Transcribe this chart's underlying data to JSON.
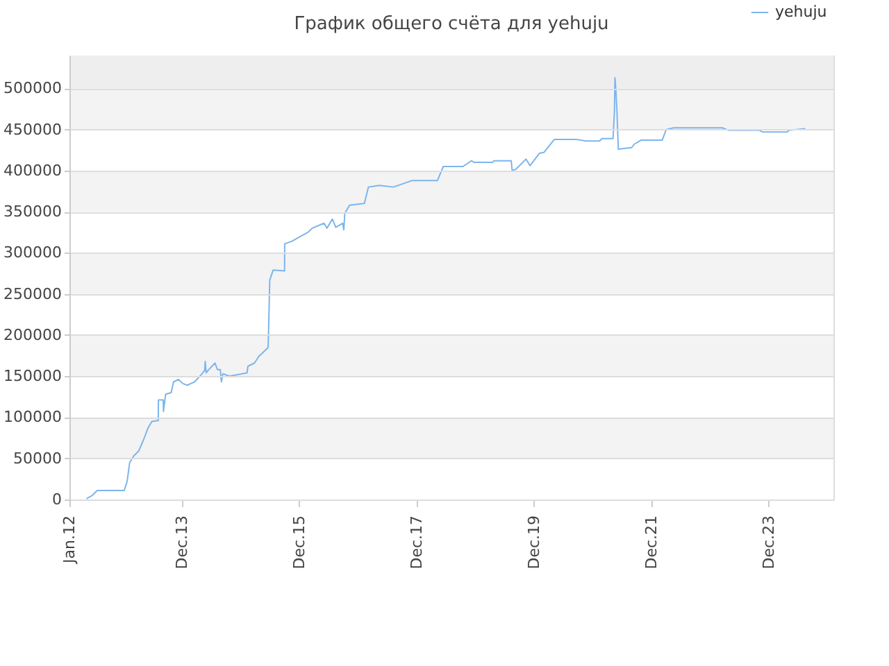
{
  "chart_data": {
    "type": "line",
    "title": "График общего счёта для yehuju",
    "x": [
      "2012-04-16",
      "2012-05-22",
      "2012-06-22",
      "2012-12-07",
      "2012-12-25",
      "2013-01-10",
      "2013-02-04",
      "2013-03-07",
      "2013-04-07",
      "2013-05-04",
      "2013-05-28",
      "2013-07-07",
      "2013-07-08",
      "2013-08-07",
      "2013-08-08",
      "2013-08-22",
      "2013-09-25",
      "2013-10-10",
      "2013-11-10",
      "2013-12-07",
      "2014-01-04",
      "2014-01-25",
      "2014-02-18",
      "2014-04-01",
      "2014-04-22",
      "2014-04-25",
      "2014-05-01",
      "2014-05-13",
      "2014-06-25",
      "2014-07-10",
      "2014-07-28",
      "2014-08-04",
      "2014-08-13",
      "2014-09-22",
      "2014-11-19",
      "2015-01-10",
      "2015-01-16",
      "2015-02-26",
      "2015-03-25",
      "2015-05-07",
      "2015-05-22",
      "2015-06-01",
      "2015-06-22",
      "2015-09-01",
      "2015-09-02",
      "2015-10-16",
      "2015-12-10",
      "2016-01-25",
      "2016-02-21",
      "2016-05-04",
      "2016-05-22",
      "2016-06-25",
      "2016-07-16",
      "2016-08-28",
      "2016-09-04",
      "2016-09-10",
      "2016-10-10",
      "2016-11-22",
      "2017-01-10",
      "2017-02-04",
      "2017-04-13",
      "2017-07-10",
      "2017-11-04",
      "2018-04-10",
      "2018-05-16",
      "2018-09-16",
      "2018-11-07",
      "2018-11-25",
      "2019-03-19",
      "2019-03-28",
      "2019-07-13",
      "2019-07-19",
      "2019-08-13",
      "2019-10-13",
      "2019-11-07",
      "2020-01-04",
      "2020-02-01",
      "2020-04-07",
      "2020-08-22",
      "2020-10-19",
      "2021-01-13",
      "2021-01-28",
      "2021-04-07",
      "2021-04-16",
      "2021-04-19",
      "2021-04-25",
      "2021-05-01",
      "2021-05-10",
      "2021-08-01",
      "2021-08-16",
      "2021-09-28",
      "2022-02-07",
      "2022-03-04",
      "2022-04-19",
      "2023-02-16",
      "2023-03-28",
      "2023-10-04",
      "2023-10-25",
      "2024-03-25",
      "2024-04-07",
      "2024-07-16"
    ],
    "series": [
      {
        "name": "yehuju",
        "color": "#7cb5ec",
        "values": [
          1000,
          5000,
          11000,
          11000,
          22000,
          45000,
          53000,
          59000,
          73000,
          87000,
          95000,
          96000,
          121000,
          121000,
          107000,
          128000,
          130000,
          143000,
          146000,
          141000,
          139000,
          141000,
          143000,
          152000,
          157000,
          168000,
          154000,
          157000,
          166000,
          158000,
          158000,
          143000,
          153000,
          150000,
          152000,
          154000,
          162000,
          166000,
          174000,
          182000,
          185000,
          267000,
          279000,
          278000,
          311000,
          314000,
          320000,
          325000,
          330000,
          336000,
          330000,
          341000,
          331000,
          336000,
          328000,
          348000,
          358000,
          359000,
          360000,
          380000,
          382000,
          380000,
          388000,
          388000,
          405000,
          405000,
          412000,
          410000,
          410000,
          412000,
          412000,
          400000,
          402000,
          414000,
          406000,
          421000,
          422000,
          438000,
          438000,
          436000,
          436000,
          439000,
          439000,
          474000,
          513000,
          497000,
          474000,
          426000,
          428000,
          432000,
          437000,
          437000,
          450000,
          452000,
          452000,
          449000,
          449000,
          447000,
          447000,
          449000,
          451000
        ]
      }
    ],
    "xlim": [
      "2012-01-01",
      "2025-01-08"
    ],
    "xticks": [
      {
        "value": "2012-01-01",
        "label": "Jan.12"
      },
      {
        "value": "2013-12-01",
        "label": "Dec.13"
      },
      {
        "value": "2015-12-01",
        "label": "Dec.15"
      },
      {
        "value": "2017-12-01",
        "label": "Dec.17"
      },
      {
        "value": "2019-12-01",
        "label": "Dec.19"
      },
      {
        "value": "2021-12-01",
        "label": "Dec.21"
      },
      {
        "value": "2023-12-01",
        "label": "Dec.23"
      }
    ],
    "ylim": [
      0,
      540000
    ],
    "yticks": [
      0,
      50000,
      100000,
      150000,
      200000,
      250000,
      300000,
      350000,
      400000,
      450000,
      500000
    ],
    "bands": [
      {
        "axis": "y",
        "from": 50000,
        "to": 100000,
        "color": "#f3f3f3"
      },
      {
        "axis": "y",
        "from": 150000,
        "to": 200000,
        "color": "#f3f3f3"
      },
      {
        "axis": "y",
        "from": 250000,
        "to": 300000,
        "color": "#f3f3f3"
      },
      {
        "axis": "y",
        "from": 350000,
        "to": 400000,
        "color": "#f3f3f3"
      },
      {
        "axis": "y",
        "from": 450000,
        "to": 500000,
        "color": "#f3f3f3"
      },
      {
        "axis": "y",
        "from": 500000,
        "to": 540000,
        "color": "#eeeeee"
      }
    ],
    "grid": "y",
    "legend": "top right",
    "line_style": "solid",
    "marker": "none"
  }
}
